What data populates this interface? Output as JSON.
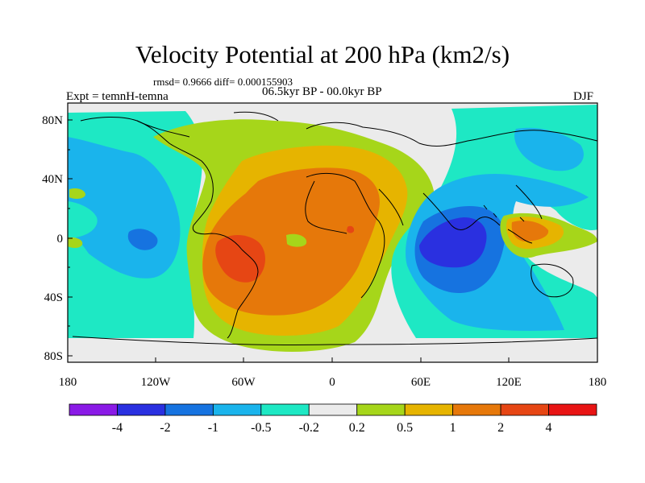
{
  "title": "Velocity Potential at 200 hPa (km2/s)",
  "stats": "rmsd= 0.9666 diff= 0.000155903",
  "experiment": "Expt = temnH-temna",
  "period": "06.5kyr BP - 00.0kyr BP",
  "season": "DJF",
  "y_axis": {
    "ticks": [
      "80N",
      "40N",
      "0",
      "40S",
      "80S"
    ]
  },
  "x_axis": {
    "ticks": [
      "180",
      "120W",
      "60W",
      "0",
      "60E",
      "120E",
      "180"
    ]
  },
  "colorbar": {
    "boundaries": [
      "-4",
      "-2",
      "-1",
      "-0.5",
      "-0.2",
      "0.2",
      "0.5",
      "1",
      "2",
      "4"
    ],
    "colors": [
      "#8a1ae6",
      "#2a30e0",
      "#1673e0",
      "#1ab4ec",
      "#1ee8c4",
      "#ebebeb",
      "#a6d61a",
      "#e6b400",
      "#e6780a",
      "#e64614",
      "#e81414"
    ]
  },
  "field_colors": {
    "bg": "#ebebeb",
    "n4": "#2a30e0",
    "n3": "#1673e0",
    "n2": "#1ab4ec",
    "n1": "#1ee8c4",
    "p1": "#a6d61a",
    "p2": "#e6b400",
    "p3": "#e6780a",
    "p4": "#e64614"
  }
}
